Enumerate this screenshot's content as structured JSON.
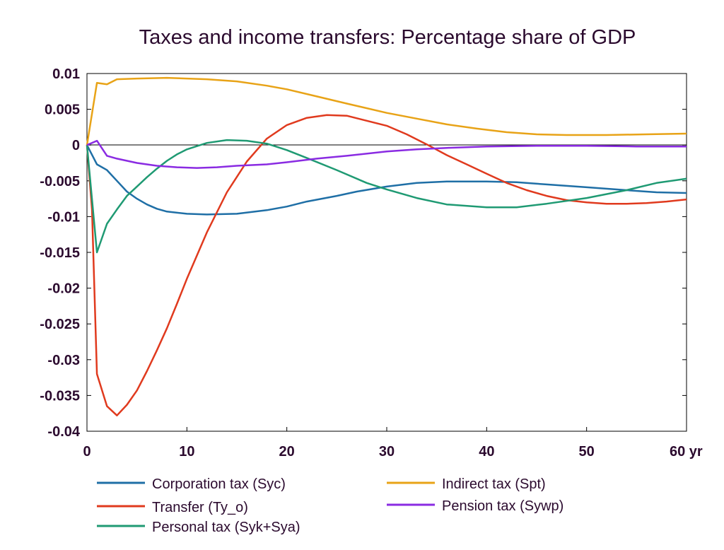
{
  "chart_data": {
    "type": "line",
    "title": "Taxes and income transfers: Percentage share of GDP",
    "x_unit_label": "yr",
    "xlim": [
      0,
      60
    ],
    "ylim": [
      -0.04,
      0.01
    ],
    "x_ticks": [
      0,
      10,
      20,
      30,
      40,
      50,
      60
    ],
    "x_tick_labels": [
      "0",
      "10",
      "20",
      "30",
      "40",
      "50",
      "60 yr"
    ],
    "y_ticks": [
      0.01,
      0.005,
      0,
      -0.005,
      -0.01,
      -0.015,
      -0.02,
      -0.025,
      -0.03,
      -0.035,
      -0.04
    ],
    "y_tick_labels": [
      "0.01",
      "0.005",
      "0",
      "-0.005",
      "-0.01",
      "-0.015",
      "-0.02",
      "-0.025",
      "-0.03",
      "-0.035",
      "-0.04"
    ],
    "grid": false,
    "zero_line": true,
    "legend_position": "bottom",
    "series": [
      {
        "name": "Corporation tax (Syc)",
        "color": "#1f6fa6",
        "points": [
          [
            0,
            0
          ],
          [
            1,
            -0.0027
          ],
          [
            2,
            -0.0035
          ],
          [
            3,
            -0.005
          ],
          [
            4,
            -0.0065
          ],
          [
            5,
            -0.0075
          ],
          [
            6,
            -0.0083
          ],
          [
            7,
            -0.0089
          ],
          [
            8,
            -0.0093
          ],
          [
            10,
            -0.0096
          ],
          [
            12,
            -0.0097
          ],
          [
            15,
            -0.0096
          ],
          [
            18,
            -0.0091
          ],
          [
            20,
            -0.0086
          ],
          [
            22,
            -0.0079
          ],
          [
            25,
            -0.0071
          ],
          [
            27,
            -0.0065
          ],
          [
            30,
            -0.0058
          ],
          [
            33,
            -0.0053
          ],
          [
            36,
            -0.0051
          ],
          [
            40,
            -0.0051
          ],
          [
            43,
            -0.0052
          ],
          [
            46,
            -0.0055
          ],
          [
            50,
            -0.0059
          ],
          [
            54,
            -0.0063
          ],
          [
            57,
            -0.0066
          ],
          [
            60,
            -0.0067
          ]
        ]
      },
      {
        "name": "Transfer (Ty_o)",
        "color": "#e03a1e",
        "points": [
          [
            0,
            0
          ],
          [
            0.5,
            -0.009
          ],
          [
            1,
            -0.032
          ],
          [
            2,
            -0.0365
          ],
          [
            3,
            -0.0378
          ],
          [
            4,
            -0.0363
          ],
          [
            5,
            -0.0343
          ],
          [
            6,
            -0.0316
          ],
          [
            7,
            -0.0287
          ],
          [
            8,
            -0.0256
          ],
          [
            9,
            -0.0222
          ],
          [
            10,
            -0.0187
          ],
          [
            12,
            -0.0122
          ],
          [
            14,
            -0.0066
          ],
          [
            16,
            -0.0023
          ],
          [
            18,
            0.0009
          ],
          [
            20,
            0.0028
          ],
          [
            22,
            0.0038
          ],
          [
            24,
            0.0042
          ],
          [
            26,
            0.0041
          ],
          [
            28,
            0.0034
          ],
          [
            30,
            0.0027
          ],
          [
            32,
            0.0015
          ],
          [
            34,
            0.0001
          ],
          [
            36,
            -0.0014
          ],
          [
            38,
            -0.0027
          ],
          [
            40,
            -0.004
          ],
          [
            42,
            -0.0053
          ],
          [
            44,
            -0.0063
          ],
          [
            46,
            -0.0071
          ],
          [
            48,
            -0.0077
          ],
          [
            50,
            -0.008
          ],
          [
            52,
            -0.0082
          ],
          [
            54,
            -0.0082
          ],
          [
            56,
            -0.0081
          ],
          [
            58,
            -0.0079
          ],
          [
            60,
            -0.0076
          ]
        ]
      },
      {
        "name": "Personal tax (Syk+Sya)",
        "color": "#1f9a73",
        "points": [
          [
            0,
            0
          ],
          [
            1,
            -0.015
          ],
          [
            2,
            -0.011
          ],
          [
            3,
            -0.009
          ],
          [
            4,
            -0.0071
          ],
          [
            5,
            -0.0058
          ],
          [
            6,
            -0.0045
          ],
          [
            7,
            -0.0033
          ],
          [
            8,
            -0.0022
          ],
          [
            9,
            -0.0013
          ],
          [
            10,
            -0.0006
          ],
          [
            12,
            0.0003
          ],
          [
            14,
            0.0007
          ],
          [
            16,
            0.0006
          ],
          [
            18,
            0.0002
          ],
          [
            20,
            -0.0007
          ],
          [
            22,
            -0.0018
          ],
          [
            25,
            -0.0035
          ],
          [
            28,
            -0.0053
          ],
          [
            30,
            -0.0062
          ],
          [
            33,
            -0.0074
          ],
          [
            36,
            -0.0083
          ],
          [
            40,
            -0.0087
          ],
          [
            43,
            -0.0087
          ],
          [
            46,
            -0.0082
          ],
          [
            50,
            -0.0074
          ],
          [
            54,
            -0.0063
          ],
          [
            57,
            -0.0053
          ],
          [
            60,
            -0.0047
          ]
        ]
      },
      {
        "name": "Indirect tax (Spt)",
        "color": "#e8a317",
        "points": [
          [
            0,
            0
          ],
          [
            1,
            0.0087
          ],
          [
            2,
            0.0085
          ],
          [
            3,
            0.0092
          ],
          [
            5,
            0.0093
          ],
          [
            8,
            0.0094
          ],
          [
            10,
            0.0093
          ],
          [
            12,
            0.0092
          ],
          [
            15,
            0.0089
          ],
          [
            18,
            0.0083
          ],
          [
            20,
            0.0078
          ],
          [
            23,
            0.0068
          ],
          [
            26,
            0.0058
          ],
          [
            30,
            0.0045
          ],
          [
            33,
            0.0037
          ],
          [
            36,
            0.0029
          ],
          [
            39,
            0.0023
          ],
          [
            42,
            0.0018
          ],
          [
            45,
            0.0015
          ],
          [
            48,
            0.0014
          ],
          [
            52,
            0.0014
          ],
          [
            56,
            0.0015
          ],
          [
            60,
            0.0016
          ]
        ]
      },
      {
        "name": "Pension tax (Sywp)",
        "color": "#8a2be2",
        "points": [
          [
            0,
            0
          ],
          [
            1,
            0.0006
          ],
          [
            2,
            -0.0015
          ],
          [
            3,
            -0.0019
          ],
          [
            5,
            -0.0025
          ],
          [
            7,
            -0.0029
          ],
          [
            9,
            -0.0031
          ],
          [
            11,
            -0.0032
          ],
          [
            13,
            -0.0031
          ],
          [
            15,
            -0.0029
          ],
          [
            18,
            -0.0027
          ],
          [
            20,
            -0.0024
          ],
          [
            23,
            -0.0019
          ],
          [
            26,
            -0.0015
          ],
          [
            30,
            -0.0009
          ],
          [
            33,
            -0.0006
          ],
          [
            36,
            -0.0004
          ],
          [
            40,
            -0.0002
          ],
          [
            45,
            -0.0001
          ],
          [
            50,
            -0.0001
          ],
          [
            55,
            -0.0002
          ],
          [
            60,
            -0.0002
          ]
        ]
      }
    ]
  }
}
